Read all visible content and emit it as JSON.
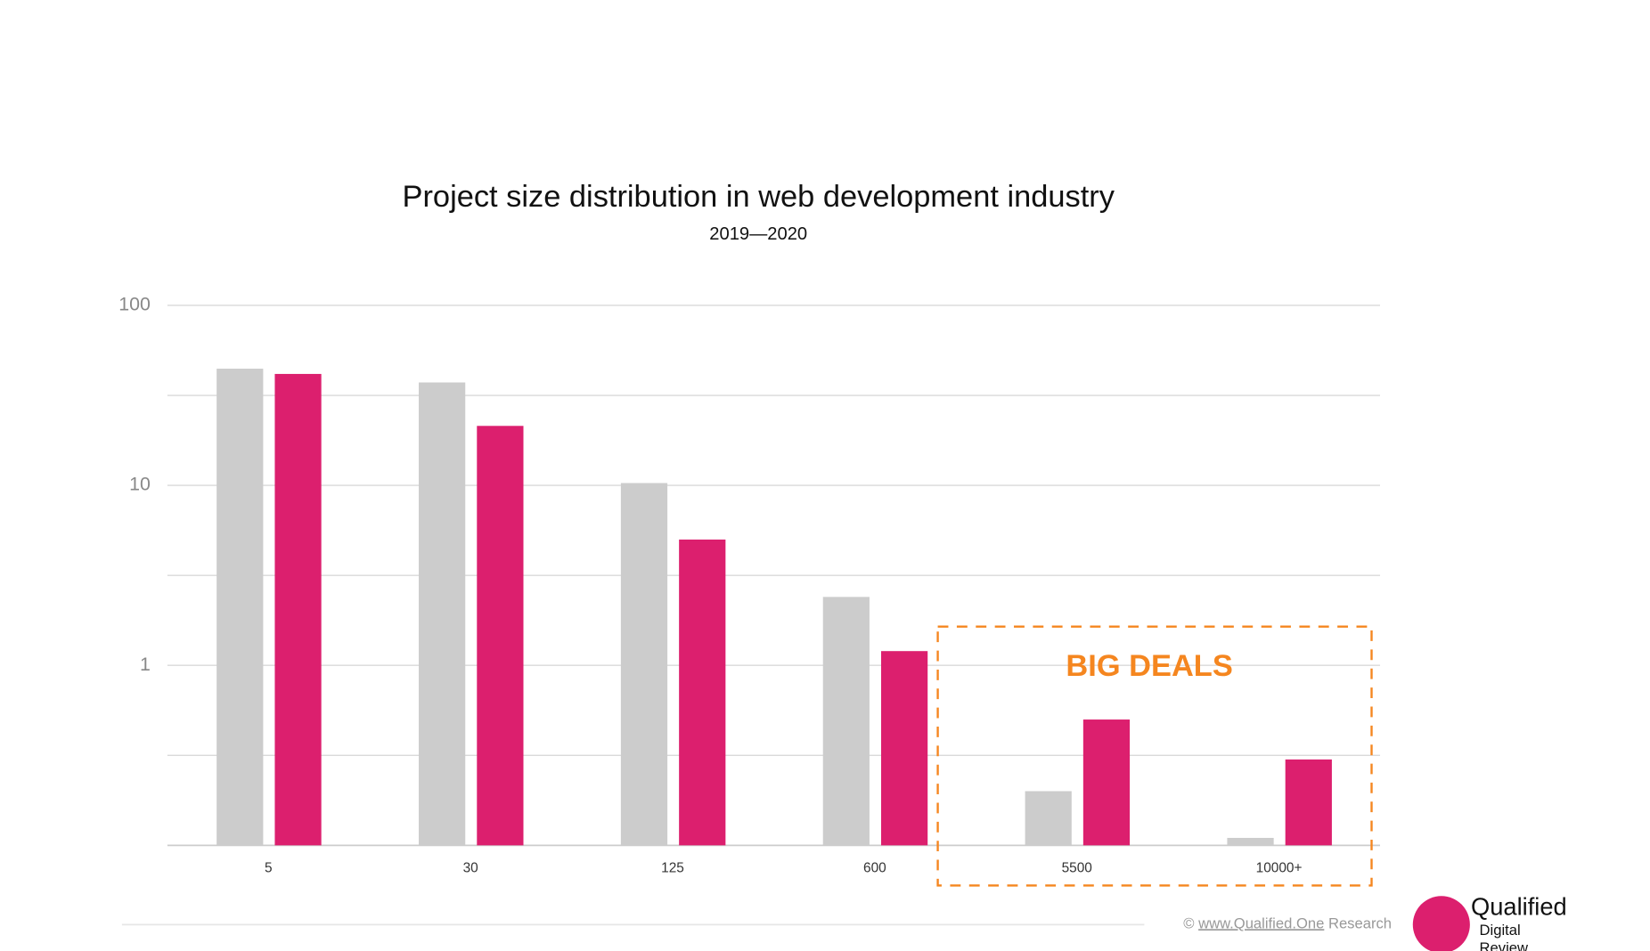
{
  "chart_data": {
    "type": "bar",
    "title": "Project size distribution in web development industry",
    "subtitle": "2019—2020",
    "categories": [
      "5",
      "30",
      "125",
      "600",
      "5500",
      "10000+"
    ],
    "series": [
      {
        "color": "#cccccc",
        "values": [
          44.5,
          37.3,
          10.3,
          2.4,
          0.2,
          0.11
        ]
      },
      {
        "color": "#dc1f6e",
        "values": [
          41.6,
          21.4,
          5.0,
          1.2,
          0.5,
          0.3
        ]
      }
    ],
    "log_scale": true,
    "ylim": [
      0.1,
      100
    ],
    "yticks": [
      1,
      10,
      100
    ],
    "minor_yticks": [
      0.316,
      3.16,
      31.6
    ],
    "grid": true,
    "annotation": {
      "text": "BIG DEALS",
      "color": "#f5861f"
    },
    "footer": {
      "credit_prefix": "© ",
      "credit_link": "www.Qualified.One",
      "credit_suffix": " Research"
    },
    "logo": {
      "name": "Qualified",
      "line1": "Digital",
      "line2": "Review"
    }
  }
}
